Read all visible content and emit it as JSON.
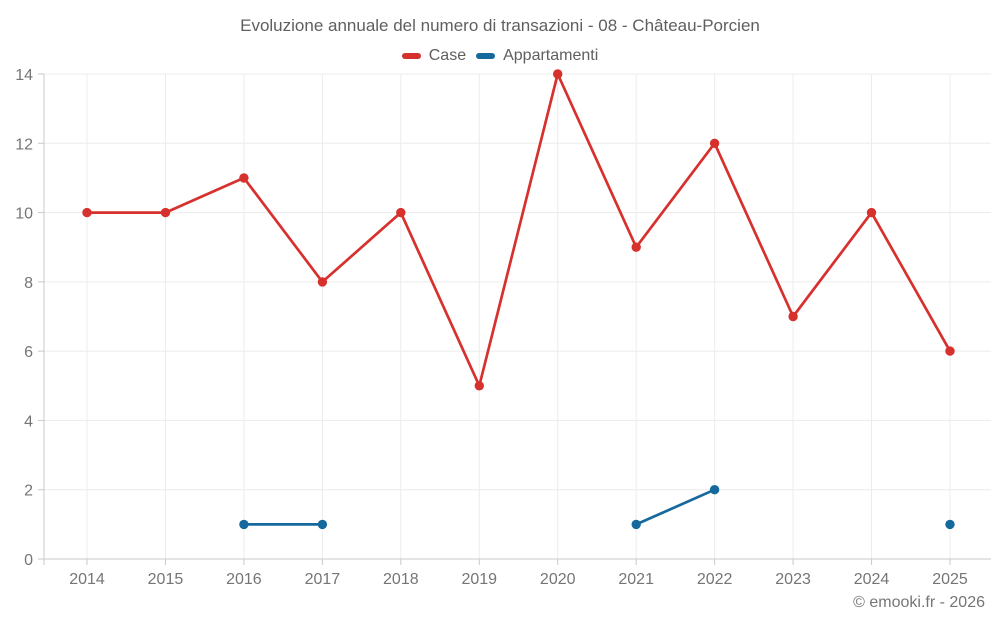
{
  "page": {
    "background": "#ffffff"
  },
  "chart_data": {
    "type": "line",
    "title": "Evoluzione annuale del numero di transazioni - 08 - Château-Porcien",
    "categories": [
      "2014",
      "2015",
      "2016",
      "2017",
      "2018",
      "2019",
      "2020",
      "2021",
      "2022",
      "2023",
      "2024",
      "2025"
    ],
    "series": [
      {
        "name": "Case",
        "color": "#d7312e",
        "values": [
          10,
          10,
          11,
          8,
          10,
          5,
          14,
          9,
          12,
          7,
          10,
          6
        ]
      },
      {
        "name": "Appartamenti",
        "color": "#16699d",
        "values": [
          null,
          null,
          1,
          1,
          null,
          null,
          null,
          1,
          2,
          null,
          null,
          1
        ]
      }
    ],
    "xlabel": "",
    "ylabel": "",
    "ylim": [
      0,
      14
    ],
    "yticks": [
      0,
      2,
      4,
      6,
      8,
      10,
      12,
      14
    ],
    "grid": true,
    "legend_position": "top",
    "marker": "circle",
    "colors": {
      "grid": "#ececec",
      "axis": "#c9c9c9",
      "tick_label": "#757575",
      "title_text": "#5f5f5f"
    }
  },
  "footer": {
    "credit": "© emooki.fr - 2026"
  }
}
